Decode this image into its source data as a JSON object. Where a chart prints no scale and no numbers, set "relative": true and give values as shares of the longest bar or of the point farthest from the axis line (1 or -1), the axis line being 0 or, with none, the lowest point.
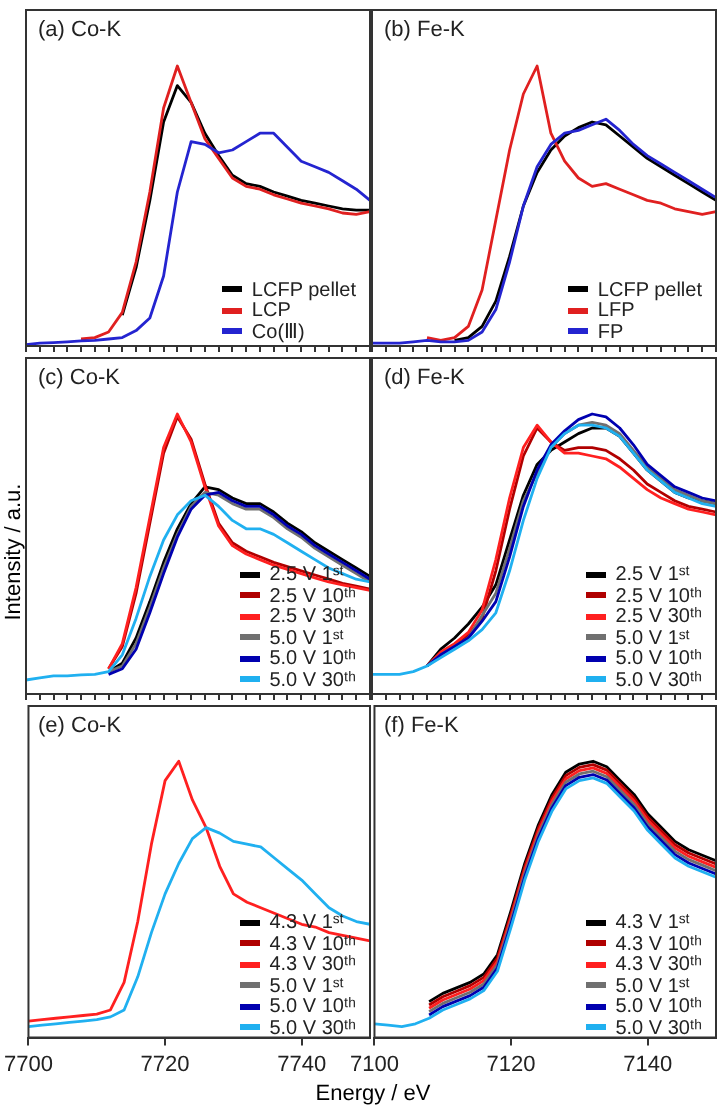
{
  "chart_data": [
    {
      "type": "line",
      "title": "(a) Co-K",
      "relative": true,
      "tick_labels": false,
      "legend": "bottom right",
      "marker": "none",
      "line_style": "solid",
      "grid": false,
      "categories": [
        null,
        null,
        null,
        null,
        null,
        null,
        null,
        null,
        null,
        null,
        null,
        null,
        null,
        null,
        null,
        null,
        null,
        null,
        null,
        null,
        null,
        null,
        null,
        null,
        null,
        null
      ],
      "series": [
        {
          "name": "LCFP pellet",
          "color": "#000000",
          "values": [
            null,
            null,
            null,
            null,
            null,
            null,
            null,
            0.11,
            0.28,
            0.52,
            0.8,
            0.93,
            0.87,
            0.76,
            0.68,
            0.61,
            0.58,
            0.57,
            0.55,
            0.535,
            0.52,
            0.51,
            0.5,
            0.49,
            0.485,
            0.485
          ]
        },
        {
          "name": "LCP",
          "color": "#e02020",
          "values": [
            null,
            null,
            null,
            null,
            0.025,
            0.03,
            0.05,
            0.12,
            0.3,
            0.55,
            0.85,
            1.0,
            0.87,
            0.74,
            0.67,
            0.6,
            0.57,
            0.56,
            0.54,
            0.525,
            0.51,
            0.5,
            0.49,
            0.475,
            0.47,
            0.48
          ]
        },
        {
          "name": "Co(Ⅲ)",
          "color": "#2424d0",
          "values": [
            0.005,
            0.01,
            0.012,
            0.015,
            0.018,
            0.02,
            0.025,
            0.03,
            0.055,
            0.1,
            0.25,
            0.55,
            0.73,
            0.72,
            0.69,
            0.7,
            0.73,
            0.76,
            0.76,
            0.71,
            0.66,
            0.64,
            0.62,
            0.59,
            0.56,
            0.52
          ]
        }
      ]
    },
    {
      "type": "line",
      "title": "(b) Fe-K",
      "relative": true,
      "tick_labels": false,
      "legend": "bottom right",
      "marker": "none",
      "line_style": "solid",
      "grid": false,
      "categories": [
        null,
        null,
        null,
        null,
        null,
        null,
        null,
        null,
        null,
        null,
        null,
        null,
        null,
        null,
        null,
        null,
        null,
        null,
        null,
        null,
        null,
        null,
        null,
        null,
        null,
        null
      ],
      "series": [
        {
          "name": "LCFP pellet",
          "color": "#000000",
          "values": [
            null,
            null,
            null,
            null,
            null,
            null,
            0.02,
            0.03,
            0.07,
            0.16,
            0.32,
            0.5,
            0.62,
            0.7,
            0.75,
            0.78,
            0.8,
            0.79,
            0.75,
            0.71,
            0.67,
            0.64,
            0.61,
            0.58,
            0.55,
            0.52
          ]
        },
        {
          "name": "LFP",
          "color": "#e02020",
          "values": [
            null,
            null,
            null,
            null,
            0.03,
            0.02,
            0.03,
            0.07,
            0.2,
            0.45,
            0.7,
            0.9,
            1.0,
            0.76,
            0.66,
            0.6,
            0.57,
            0.58,
            0.56,
            0.54,
            0.52,
            0.51,
            0.49,
            0.48,
            0.47,
            0.48
          ]
        },
        {
          "name": "FP",
          "color": "#2424d0",
          "values": [
            0.01,
            0.01,
            0.01,
            0.015,
            0.02,
            0.015,
            0.015,
            0.02,
            0.05,
            0.13,
            0.3,
            0.5,
            0.64,
            0.72,
            0.76,
            0.77,
            0.79,
            0.81,
            0.77,
            0.72,
            0.68,
            0.65,
            0.62,
            0.59,
            0.56,
            0.53
          ]
        }
      ]
    },
    {
      "type": "line",
      "title": "(c) Co-K",
      "ylabel": "Intensity / a.u.",
      "relative": true,
      "tick_labels": false,
      "legend": "bottom right",
      "marker": "none",
      "line_style": "solid",
      "grid": false,
      "categories": [
        null,
        null,
        null,
        null,
        null,
        null,
        null,
        null,
        null,
        null,
        null,
        null,
        null,
        null,
        null,
        null,
        null,
        null,
        null,
        null,
        null,
        null,
        null,
        null,
        null,
        null
      ],
      "series": [
        {
          "name": "2.5 V 1ˢᵗ",
          "color": "#000000",
          "values": [
            null,
            null,
            null,
            null,
            null,
            null,
            0.08,
            0.11,
            0.2,
            0.33,
            0.47,
            0.59,
            0.68,
            0.74,
            0.73,
            0.7,
            0.68,
            0.68,
            0.65,
            0.61,
            0.58,
            0.54,
            0.51,
            0.48,
            0.45,
            0.42
          ]
        },
        {
          "name": "2.5 V 10ᵗʰ",
          "color": "#b00000",
          "values": [
            null,
            null,
            null,
            null,
            null,
            null,
            0.09,
            0.17,
            0.36,
            0.61,
            0.86,
            0.99,
            0.91,
            0.75,
            0.61,
            0.54,
            0.51,
            0.49,
            0.47,
            0.455,
            0.44,
            0.425,
            0.41,
            0.395,
            0.385,
            0.375
          ]
        },
        {
          "name": "2.5 V 30ᵗʰ",
          "color": "#ff2020",
          "values": [
            null,
            null,
            null,
            null,
            null,
            null,
            0.09,
            0.18,
            0.38,
            0.63,
            0.88,
            1.0,
            0.9,
            0.74,
            0.6,
            0.53,
            0.5,
            0.48,
            0.46,
            0.445,
            0.43,
            0.415,
            0.4,
            0.39,
            0.38,
            0.37
          ]
        },
        {
          "name": "5.0 V 1ˢᵗ",
          "color": "#707070",
          "values": [
            null,
            null,
            null,
            null,
            null,
            null,
            0.08,
            0.1,
            0.18,
            0.31,
            0.45,
            0.57,
            0.67,
            0.72,
            0.71,
            0.68,
            0.66,
            0.66,
            0.63,
            0.59,
            0.56,
            0.52,
            0.49,
            0.46,
            0.43,
            0.4
          ]
        },
        {
          "name": "5.0 V 10ᵗʰ",
          "color": "#0000b0",
          "values": [
            null,
            null,
            null,
            null,
            null,
            null,
            0.07,
            0.09,
            0.16,
            0.29,
            0.43,
            0.56,
            0.66,
            0.71,
            0.72,
            0.69,
            0.67,
            0.67,
            0.64,
            0.6,
            0.57,
            0.53,
            0.5,
            0.47,
            0.44,
            0.41
          ]
        },
        {
          "name": "5.0 V 30ᵗʰ",
          "color": "#20b0f0",
          "values": [
            0.05,
            0.058,
            0.065,
            0.065,
            0.068,
            0.07,
            0.08,
            0.14,
            0.27,
            0.42,
            0.55,
            0.64,
            0.69,
            0.71,
            0.67,
            0.62,
            0.59,
            0.59,
            0.57,
            0.54,
            0.51,
            0.48,
            0.45,
            0.43,
            0.41,
            0.4
          ]
        }
      ]
    },
    {
      "type": "line",
      "title": "(d) Fe-K",
      "relative": true,
      "tick_labels": false,
      "legend": "bottom right",
      "marker": "none",
      "line_style": "solid",
      "grid": false,
      "categories": [
        null,
        null,
        null,
        null,
        null,
        null,
        null,
        null,
        null,
        null,
        null,
        null,
        null,
        null,
        null,
        null,
        null,
        null,
        null,
        null,
        null,
        null,
        null,
        null,
        null,
        null
      ],
      "series": [
        {
          "name": "2.5 V 1ˢᵗ",
          "color": "#000000",
          "values": [
            null,
            null,
            null,
            null,
            0.1,
            0.16,
            0.2,
            0.25,
            0.31,
            0.39,
            0.55,
            0.71,
            0.82,
            0.87,
            0.9,
            0.93,
            0.95,
            0.95,
            0.92,
            0.86,
            0.8,
            0.76,
            0.72,
            0.7,
            0.69,
            0.68
          ]
        },
        {
          "name": "2.5 V 10ᵗʰ",
          "color": "#b00000",
          "values": [
            null,
            null,
            null,
            null,
            0.1,
            0.14,
            0.17,
            0.21,
            0.27,
            0.44,
            0.66,
            0.85,
            0.95,
            0.9,
            0.87,
            0.88,
            0.88,
            0.87,
            0.84,
            0.8,
            0.75,
            0.72,
            0.69,
            0.67,
            0.66,
            0.65
          ]
        },
        {
          "name": "2.5 V 30ᵗʰ",
          "color": "#ff2020",
          "values": [
            null,
            null,
            null,
            null,
            0.1,
            0.15,
            0.18,
            0.22,
            0.3,
            0.48,
            0.7,
            0.88,
            0.96,
            0.9,
            0.86,
            0.86,
            0.85,
            0.84,
            0.81,
            0.77,
            0.73,
            0.7,
            0.68,
            0.66,
            0.65,
            0.64
          ]
        },
        {
          "name": "5.0 V 1ˢᵗ",
          "color": "#707070",
          "values": [
            null,
            null,
            null,
            null,
            0.1,
            0.14,
            0.17,
            0.2,
            0.28,
            0.36,
            0.52,
            0.69,
            0.79,
            0.88,
            0.93,
            0.96,
            0.97,
            0.96,
            0.93,
            0.87,
            0.81,
            0.77,
            0.73,
            0.71,
            0.69,
            0.68
          ]
        },
        {
          "name": "5.0 V 10ᵗʰ",
          "color": "#0000b0",
          "values": [
            null,
            null,
            null,
            null,
            0.1,
            0.14,
            0.17,
            0.2,
            0.26,
            0.33,
            0.49,
            0.67,
            0.8,
            0.89,
            0.94,
            0.98,
            1.0,
            0.99,
            0.95,
            0.89,
            0.82,
            0.78,
            0.74,
            0.72,
            0.7,
            0.69
          ]
        },
        {
          "name": "5.0 V 30ᵗʰ",
          "color": "#20b0f0",
          "values": [
            0.07,
            0.07,
            0.07,
            0.08,
            0.1,
            0.13,
            0.16,
            0.19,
            0.23,
            0.29,
            0.44,
            0.62,
            0.77,
            0.88,
            0.93,
            0.96,
            0.96,
            0.95,
            0.92,
            0.86,
            0.8,
            0.76,
            0.72,
            0.7,
            0.68,
            0.67
          ]
        }
      ]
    },
    {
      "type": "line",
      "title": "(e) Co-K",
      "xlabel": "Energy / eV",
      "relative": true,
      "xlim": [
        7700,
        7750
      ],
      "xticks": [
        7700,
        7720,
        7740
      ],
      "tick_labels": "x",
      "legend": "bottom right",
      "marker": "none",
      "line_style": "solid",
      "grid": false,
      "x": [
        7700,
        7702,
        7704,
        7706,
        7708,
        7710,
        7712,
        7714,
        7716,
        7718,
        7720,
        7722,
        7724,
        7726,
        7728,
        7730,
        7732,
        7734,
        7736,
        7738,
        7740,
        7742,
        7744,
        7746,
        7748,
        7750
      ],
      "series": [
        {
          "name": "4.3 V 1ˢᵗ",
          "color": "#000000",
          "values": [
            null,
            null,
            null,
            null,
            null,
            null,
            null,
            null,
            null,
            null,
            null,
            null,
            null,
            null,
            null,
            null,
            null,
            null,
            null,
            null,
            null,
            null,
            null,
            null,
            null,
            null
          ]
        },
        {
          "name": "4.3 V 10ᵗʰ",
          "color": "#b00000",
          "values": [
            null,
            null,
            null,
            null,
            null,
            null,
            null,
            null,
            null,
            null,
            null,
            null,
            null,
            null,
            null,
            null,
            null,
            null,
            null,
            null,
            null,
            null,
            null,
            null,
            null,
            null
          ]
        },
        {
          "name": "4.3 V 30ᵗʰ",
          "color": "#ff2020",
          "values": [
            0.06,
            0.065,
            0.07,
            0.075,
            0.08,
            0.085,
            0.1,
            0.2,
            0.42,
            0.7,
            0.93,
            1.0,
            0.86,
            0.76,
            0.62,
            0.52,
            0.49,
            0.47,
            0.45,
            0.43,
            0.41,
            0.4,
            0.38,
            0.37,
            0.36,
            0.35
          ]
        },
        {
          "name": "5.0 V 1ˢᵗ",
          "color": "#707070",
          "values": [
            null,
            null,
            null,
            null,
            null,
            null,
            null,
            null,
            null,
            null,
            null,
            null,
            null,
            null,
            null,
            null,
            null,
            null,
            null,
            null,
            null,
            null,
            null,
            null,
            null,
            null
          ]
        },
        {
          "name": "5.0 V 10ᵗʰ",
          "color": "#0000b0",
          "values": [
            null,
            null,
            null,
            null,
            null,
            null,
            null,
            null,
            null,
            null,
            null,
            null,
            null,
            null,
            null,
            null,
            null,
            null,
            null,
            null,
            null,
            null,
            null,
            null,
            null,
            null
          ]
        },
        {
          "name": "5.0 V 30ᵗʰ",
          "color": "#20b0f0",
          "values": [
            0.04,
            0.045,
            0.05,
            0.055,
            0.06,
            0.065,
            0.075,
            0.1,
            0.22,
            0.38,
            0.52,
            0.63,
            0.72,
            0.76,
            0.74,
            0.71,
            0.7,
            0.69,
            0.65,
            0.61,
            0.57,
            0.52,
            0.47,
            0.44,
            0.42,
            0.41
          ]
        }
      ]
    },
    {
      "type": "line",
      "title": "(f) Fe-K",
      "relative": true,
      "xlim": [
        7100,
        7150
      ],
      "xticks": [
        7100,
        7120,
        7140
      ],
      "tick_labels": "x",
      "legend": "bottom right",
      "marker": "none",
      "line_style": "solid",
      "grid": false,
      "x": [
        7100,
        7102,
        7104,
        7106,
        7108,
        7110,
        7112,
        7114,
        7116,
        7118,
        7120,
        7122,
        7124,
        7126,
        7128,
        7130,
        7132,
        7134,
        7136,
        7138,
        7140,
        7142,
        7144,
        7146,
        7148,
        7150
      ],
      "series": [
        {
          "name": "4.3 V 1ˢᵗ",
          "color": "#000000",
          "values": [
            null,
            null,
            null,
            null,
            0.13,
            0.16,
            0.18,
            0.2,
            0.23,
            0.3,
            0.46,
            0.63,
            0.77,
            0.88,
            0.96,
            0.99,
            1.0,
            0.98,
            0.93,
            0.88,
            0.81,
            0.76,
            0.71,
            0.68,
            0.66,
            0.64
          ]
        },
        {
          "name": "4.3 V 10ᵗʰ",
          "color": "#b00000",
          "values": [
            null,
            null,
            null,
            null,
            0.118,
            0.148,
            0.168,
            0.188,
            0.218,
            0.288,
            0.448,
            0.618,
            0.758,
            0.868,
            0.948,
            0.978,
            0.988,
            0.968,
            0.918,
            0.868,
            0.798,
            0.748,
            0.698,
            0.668,
            0.648,
            0.628
          ]
        },
        {
          "name": "4.3 V 30ᵗʰ",
          "color": "#ff2020",
          "values": [
            null,
            null,
            null,
            null,
            0.106,
            0.136,
            0.156,
            0.176,
            0.206,
            0.276,
            0.436,
            0.606,
            0.746,
            0.856,
            0.936,
            0.966,
            0.976,
            0.956,
            0.906,
            0.856,
            0.786,
            0.736,
            0.686,
            0.656,
            0.636,
            0.616
          ]
        },
        {
          "name": "5.0 V 1ˢᵗ",
          "color": "#707070",
          "values": [
            null,
            null,
            null,
            null,
            0.094,
            0.124,
            0.144,
            0.164,
            0.194,
            0.264,
            0.424,
            0.594,
            0.734,
            0.844,
            0.924,
            0.954,
            0.964,
            0.944,
            0.894,
            0.844,
            0.774,
            0.724,
            0.674,
            0.644,
            0.624,
            0.604
          ]
        },
        {
          "name": "5.0 V 10ᵗʰ",
          "color": "#0000b0",
          "values": [
            null,
            null,
            null,
            null,
            0.082,
            0.112,
            0.132,
            0.152,
            0.182,
            0.252,
            0.412,
            0.582,
            0.722,
            0.832,
            0.912,
            0.942,
            0.952,
            0.932,
            0.882,
            0.832,
            0.762,
            0.712,
            0.662,
            0.632,
            0.612,
            0.592
          ]
        },
        {
          "name": "5.0 V 30ᵗʰ",
          "color": "#20b0f0",
          "values": [
            0.05,
            0.045,
            0.04,
            0.05,
            0.07,
            0.1,
            0.12,
            0.14,
            0.17,
            0.24,
            0.4,
            0.57,
            0.71,
            0.82,
            0.9,
            0.93,
            0.94,
            0.92,
            0.87,
            0.82,
            0.75,
            0.7,
            0.65,
            0.62,
            0.6,
            0.58
          ]
        }
      ]
    }
  ]
}
